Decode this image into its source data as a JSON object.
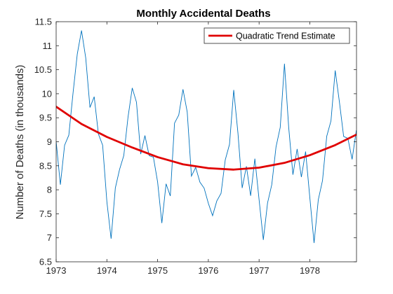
{
  "chart_data": {
    "type": "line",
    "title": "Monthly Accidental Deaths",
    "xlabel": "",
    "ylabel": "Number of Deaths (in thousands)",
    "xlim": [
      1973,
      1978.92
    ],
    "ylim": [
      6.5,
      11.5
    ],
    "xticks": [
      1973,
      1974,
      1975,
      1976,
      1977,
      1978
    ],
    "xtick_labels": [
      "1973",
      "1974",
      "1975",
      "1976",
      "1977",
      "1978"
    ],
    "yticks": [
      6.5,
      7,
      7.5,
      8,
      8.5,
      9,
      9.5,
      10,
      10.5,
      11,
      11.5
    ],
    "ytick_labels": [
      "6.5",
      "7",
      "7.5",
      "8",
      "8.5",
      "9",
      "9.5",
      "10",
      "10.5",
      "11",
      "11.5"
    ],
    "grid": false,
    "legend_position": "top-right",
    "series": [
      {
        "name": "",
        "color": "#0072BD",
        "x_start": 1973,
        "x_step_months": 1,
        "values": [
          9.007,
          8.106,
          8.928,
          9.137,
          10.017,
          10.826,
          11.317,
          10.744,
          9.713,
          9.938,
          9.161,
          8.927,
          7.75,
          6.981,
          8.038,
          8.422,
          8.714,
          9.512,
          10.12,
          9.823,
          8.743,
          9.129,
          8.71,
          8.68,
          8.162,
          7.306,
          8.124,
          7.87,
          9.387,
          9.556,
          10.093,
          9.62,
          8.285,
          8.466,
          8.16,
          8.034,
          7.717,
          7.461,
          7.767,
          7.925,
          8.623,
          8.945,
          10.078,
          9.179,
          8.037,
          8.488,
          7.874,
          8.647,
          7.792,
          6.957,
          7.726,
          8.106,
          8.89,
          9.299,
          10.625,
          9.302,
          8.314,
          8.85,
          8.265,
          8.796,
          7.836,
          6.892,
          7.791,
          8.192,
          9.115,
          9.434,
          10.484,
          9.827,
          9.11,
          9.07,
          8.633,
          9.24
        ]
      },
      {
        "name": "Quadratic Trend Estimate",
        "color": "#E00000",
        "trend_points": [
          [
            1973.0,
            9.73
          ],
          [
            1973.5,
            9.37
          ],
          [
            1974.0,
            9.1
          ],
          [
            1974.5,
            8.88
          ],
          [
            1975.0,
            8.68
          ],
          [
            1975.5,
            8.53
          ],
          [
            1976.0,
            8.45
          ],
          [
            1976.5,
            8.42
          ],
          [
            1977.0,
            8.46
          ],
          [
            1977.5,
            8.56
          ],
          [
            1978.0,
            8.72
          ],
          [
            1978.5,
            8.93
          ],
          [
            1978.92,
            9.15
          ]
        ]
      }
    ]
  }
}
